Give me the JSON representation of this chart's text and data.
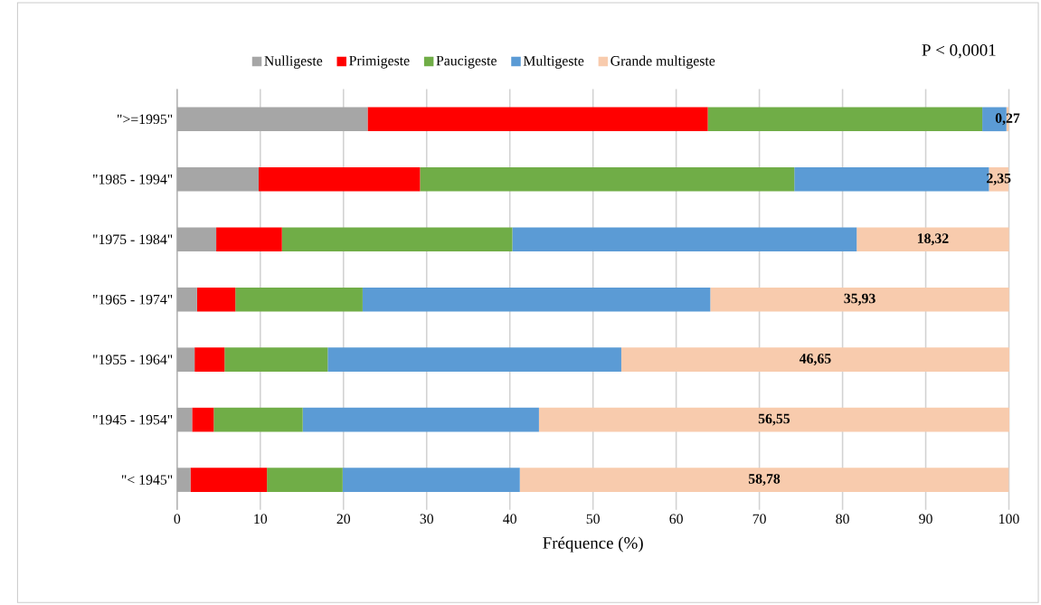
{
  "chart_data": {
    "type": "bar",
    "orientation": "horizontal",
    "stacked": true,
    "xlabel": "Fréquence (%)",
    "categories": [
      "\">=1995\"",
      "\"1985 - 1994\"",
      "\"1975 - 1984\"",
      "\"1965 - 1974\"",
      "\"1955 - 1964\"",
      "\"1945 - 1954\"",
      "\"< 1945\""
    ],
    "series": [
      {
        "name": "Nulligeste",
        "color": "#a6a6a6",
        "values": [
          22.9,
          9.8,
          4.7,
          2.4,
          2.1,
          1.8,
          1.6
        ]
      },
      {
        "name": "Primigeste",
        "color": "#ff0000",
        "values": [
          40.9,
          19.4,
          7.9,
          4.6,
          3.6,
          2.6,
          9.2
        ]
      },
      {
        "name": "Paucigeste",
        "color": "#70ad47",
        "values": [
          33.0,
          45.0,
          27.7,
          15.3,
          12.4,
          10.7,
          9.1
        ]
      },
      {
        "name": "Multigeste",
        "color": "#5b9bd5",
        "values": [
          2.9,
          23.4,
          41.4,
          41.8,
          35.3,
          28.4,
          21.3
        ]
      },
      {
        "name": "Grande multigeste",
        "color": "#f8cbad",
        "values": [
          0.27,
          2.35,
          18.32,
          35.93,
          46.65,
          56.55,
          58.78
        ],
        "value_labels": [
          "0,27",
          "2,35",
          "18,32",
          "35,93",
          "46,65",
          "56,55",
          "58,78"
        ]
      }
    ],
    "xlim": [
      0,
      100
    ],
    "xticks": [
      0,
      10,
      20,
      30,
      40,
      50,
      60,
      70,
      80,
      90,
      100
    ],
    "grid": "x",
    "legend": "top",
    "annotations": [
      "P < 0,0001"
    ]
  }
}
